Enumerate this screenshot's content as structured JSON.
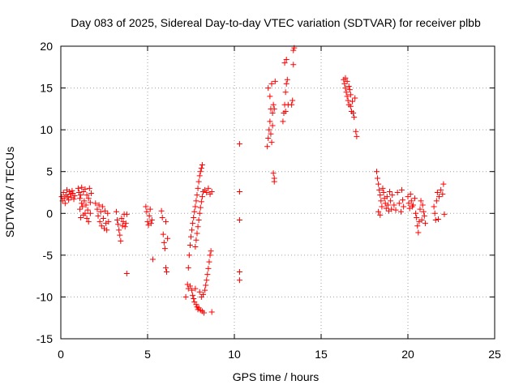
{
  "chart_data": {
    "type": "scatter",
    "title": "Day 083 of 2025, Sidereal Day-to-day VTEC variation (SDTVAR) for receiver plbb",
    "xlabel": "GPS time / hours",
    "ylabel": "SDTVAR / TECUs",
    "xlim": [
      0,
      25
    ],
    "ylim": [
      -15,
      20
    ],
    "xticks": [
      0,
      5,
      10,
      15,
      20,
      25
    ],
    "yticks": [
      -15,
      -10,
      -5,
      0,
      5,
      10,
      15,
      20
    ],
    "xtick_labels": [
      "0",
      "5",
      "10",
      "15",
      "20",
      "25"
    ],
    "ytick_labels": [
      "-15",
      "-10",
      "-5",
      "0",
      "5",
      "10",
      "15",
      "20"
    ],
    "grid": true,
    "marker": "+",
    "color": "#ff0000",
    "series": [
      {
        "name": "SDTVAR",
        "points": [
          [
            0.05,
            2.0
          ],
          [
            0.1,
            1.5
          ],
          [
            0.15,
            2.5
          ],
          [
            0.2,
            1.8
          ],
          [
            0.25,
            1.2
          ],
          [
            0.3,
            2.2
          ],
          [
            0.35,
            2.8
          ],
          [
            0.4,
            2.0
          ],
          [
            0.45,
            1.6
          ],
          [
            0.5,
            2.6
          ],
          [
            0.55,
            2.3
          ],
          [
            0.6,
            1.9
          ],
          [
            0.65,
            2.7
          ],
          [
            0.7,
            2.4
          ],
          [
            0.75,
            1.7
          ],
          [
            0.8,
            2.1
          ],
          [
            1.0,
            3.0
          ],
          [
            1.05,
            2.5
          ],
          [
            1.1,
            1.8
          ],
          [
            1.1,
            0.5
          ],
          [
            1.15,
            2.2
          ],
          [
            1.15,
            -0.5
          ],
          [
            1.2,
            1.2
          ],
          [
            1.2,
            3.1
          ],
          [
            1.25,
            0.8
          ],
          [
            1.3,
            2.6
          ],
          [
            1.3,
            -0.2
          ],
          [
            1.35,
            1.5
          ],
          [
            1.4,
            0.0
          ],
          [
            1.4,
            2.9
          ],
          [
            1.45,
            1.0
          ],
          [
            1.5,
            -0.6
          ],
          [
            1.5,
            2.2
          ],
          [
            1.55,
            0.4
          ],
          [
            1.6,
            1.8
          ],
          [
            1.6,
            -1.0
          ],
          [
            1.65,
            3.0
          ],
          [
            1.7,
            1.3
          ],
          [
            1.7,
            0.0
          ],
          [
            1.75,
            2.4
          ],
          [
            2.0,
            1.2
          ],
          [
            2.1,
            0.5
          ],
          [
            2.15,
            -0.3
          ],
          [
            2.2,
            1.0
          ],
          [
            2.25,
            -1.0
          ],
          [
            2.3,
            0.2
          ],
          [
            2.35,
            -1.5
          ],
          [
            2.4,
            0.8
          ],
          [
            2.45,
            -0.6
          ],
          [
            2.5,
            -1.8
          ],
          [
            2.55,
            0.3
          ],
          [
            2.6,
            -1.2
          ],
          [
            2.65,
            -2.0
          ],
          [
            2.7,
            0.0
          ],
          [
            2.75,
            -1.0
          ],
          [
            3.2,
            0.2
          ],
          [
            3.25,
            -0.8
          ],
          [
            3.3,
            -1.3
          ],
          [
            3.35,
            -2.0
          ],
          [
            3.4,
            -2.6
          ],
          [
            3.45,
            -3.3
          ],
          [
            3.5,
            -0.6
          ],
          [
            3.55,
            -1.5
          ],
          [
            3.6,
            -1.0
          ],
          [
            3.65,
            -0.1
          ],
          [
            3.7,
            -1.6
          ],
          [
            3.75,
            -1.2
          ],
          [
            3.8,
            -0.1
          ],
          [
            3.8,
            -7.2
          ],
          [
            4.9,
            0.8
          ],
          [
            4.95,
            0.2
          ],
          [
            5.0,
            -1.0
          ],
          [
            5.05,
            -1.4
          ],
          [
            5.1,
            -0.3
          ],
          [
            5.15,
            0.5
          ],
          [
            5.2,
            -1.2
          ],
          [
            5.25,
            -0.8
          ],
          [
            5.3,
            -5.5
          ],
          [
            5.8,
            0.3
          ],
          [
            5.85,
            -0.5
          ],
          [
            5.9,
            -2.5
          ],
          [
            5.95,
            -3.5
          ],
          [
            6.0,
            -4.2
          ],
          [
            6.05,
            -6.5
          ],
          [
            6.1,
            -7.0
          ],
          [
            6.05,
            -1.0
          ],
          [
            6.15,
            -3.0
          ],
          [
            7.2,
            -10.0
          ],
          [
            7.3,
            -8.5
          ],
          [
            7.35,
            -6.5
          ],
          [
            7.4,
            -5.0
          ],
          [
            7.45,
            -3.8
          ],
          [
            7.5,
            -2.8
          ],
          [
            7.55,
            -2.0
          ],
          [
            7.6,
            -1.2
          ],
          [
            7.65,
            -0.5
          ],
          [
            7.7,
            0.2
          ],
          [
            7.75,
            0.8
          ],
          [
            7.8,
            1.5
          ],
          [
            7.85,
            2.2
          ],
          [
            7.9,
            3.0
          ],
          [
            7.95,
            3.8
          ],
          [
            8.0,
            4.5
          ],
          [
            8.05,
            5.0
          ],
          [
            8.1,
            5.4
          ],
          [
            8.15,
            5.8
          ],
          [
            7.35,
            -9.0
          ],
          [
            7.45,
            -8.7
          ],
          [
            7.55,
            -9.2
          ],
          [
            7.6,
            -9.8
          ],
          [
            7.65,
            -10.2
          ],
          [
            7.7,
            -10.6
          ],
          [
            7.75,
            -9.0
          ],
          [
            7.8,
            -10.9
          ],
          [
            7.85,
            -11.2
          ],
          [
            7.9,
            -11.5
          ],
          [
            7.95,
            -11.3
          ],
          [
            8.0,
            -9.4
          ],
          [
            8.05,
            -11.6
          ],
          [
            8.1,
            -10.0
          ],
          [
            8.15,
            -11.7
          ],
          [
            8.2,
            -9.7
          ],
          [
            8.25,
            -11.9
          ],
          [
            8.3,
            -9.2
          ],
          [
            8.35,
            -8.6
          ],
          [
            8.4,
            -8.0
          ],
          [
            8.45,
            -7.3
          ],
          [
            8.5,
            -6.6
          ],
          [
            8.55,
            -5.8
          ],
          [
            8.6,
            -5.0
          ],
          [
            8.65,
            -4.5
          ],
          [
            8.7,
            -11.8
          ],
          [
            7.75,
            -4.0
          ],
          [
            7.8,
            -3.2
          ],
          [
            7.85,
            -2.4
          ],
          [
            7.9,
            -1.6
          ],
          [
            7.95,
            -0.8
          ],
          [
            8.0,
            0.0
          ],
          [
            8.05,
            0.7
          ],
          [
            8.1,
            1.4
          ],
          [
            8.15,
            2.0
          ],
          [
            8.2,
            2.6
          ],
          [
            8.3,
            2.8
          ],
          [
            8.4,
            2.5
          ],
          [
            8.5,
            3.0
          ],
          [
            8.6,
            2.3
          ],
          [
            8.7,
            2.6
          ],
          [
            10.3,
            8.3
          ],
          [
            10.3,
            2.6
          ],
          [
            10.3,
            -0.8
          ],
          [
            10.3,
            -7.0
          ],
          [
            10.3,
            -8.0
          ],
          [
            11.9,
            8.0
          ],
          [
            11.95,
            9.0
          ],
          [
            12.0,
            10.0
          ],
          [
            12.05,
            11.0
          ],
          [
            12.1,
            9.5
          ],
          [
            12.15,
            8.5
          ],
          [
            12.2,
            10.5
          ],
          [
            12.25,
            4.8
          ],
          [
            12.3,
            4.2
          ],
          [
            12.3,
            3.8
          ],
          [
            11.95,
            15.0
          ],
          [
            12.05,
            14.0
          ],
          [
            12.1,
            12.5
          ],
          [
            12.15,
            15.5
          ],
          [
            12.2,
            12.0
          ],
          [
            12.25,
            13.0
          ],
          [
            12.3,
            12.5
          ],
          [
            12.35,
            15.8
          ],
          [
            12.8,
            11.0
          ],
          [
            12.85,
            12.0
          ],
          [
            12.9,
            13.0
          ],
          [
            12.95,
            14.5
          ],
          [
            13.0,
            15.5
          ],
          [
            13.05,
            16.0
          ],
          [
            13.1,
            13.0
          ],
          [
            12.95,
            12.2
          ],
          [
            12.9,
            18.0
          ],
          [
            13.0,
            18.4
          ],
          [
            13.3,
            13.0
          ],
          [
            13.35,
            13.5
          ],
          [
            13.4,
            17.8
          ],
          [
            13.4,
            19.5
          ],
          [
            13.45,
            19.8
          ],
          [
            16.3,
            16.0
          ],
          [
            16.35,
            15.5
          ],
          [
            16.4,
            15.0
          ],
          [
            16.45,
            14.5
          ],
          [
            16.5,
            14.0
          ],
          [
            16.55,
            13.5
          ],
          [
            16.6,
            13.0
          ],
          [
            16.65,
            14.8
          ],
          [
            16.7,
            12.8
          ],
          [
            16.75,
            12.2
          ],
          [
            16.4,
            16.2
          ],
          [
            16.5,
            15.8
          ],
          [
            16.6,
            15.2
          ],
          [
            16.7,
            14.2
          ],
          [
            16.8,
            13.4
          ],
          [
            16.85,
            12.0
          ],
          [
            16.9,
            11.5
          ],
          [
            16.95,
            13.8
          ],
          [
            17.0,
            9.8
          ],
          [
            17.05,
            9.2
          ],
          [
            18.2,
            5.0
          ],
          [
            18.25,
            4.2
          ],
          [
            18.3,
            3.5
          ],
          [
            18.35,
            2.8
          ],
          [
            18.4,
            2.2
          ],
          [
            18.45,
            1.5
          ],
          [
            18.5,
            0.8
          ],
          [
            18.3,
            0.2
          ],
          [
            18.4,
            -0.2
          ],
          [
            18.55,
            3.0
          ],
          [
            18.6,
            2.5
          ],
          [
            18.65,
            1.8
          ],
          [
            18.7,
            1.2
          ],
          [
            18.75,
            0.6
          ],
          [
            18.8,
            2.0
          ],
          [
            18.85,
            1.0
          ],
          [
            18.9,
            0.3
          ],
          [
            18.95,
            2.6
          ],
          [
            19.0,
            1.5
          ],
          [
            19.05,
            0.5
          ],
          [
            19.1,
            2.2
          ],
          [
            19.2,
            1.0
          ],
          [
            19.3,
            0.4
          ],
          [
            19.4,
            2.5
          ],
          [
            19.5,
            1.2
          ],
          [
            19.6,
            0.2
          ],
          [
            19.65,
            2.8
          ],
          [
            19.7,
            1.6
          ],
          [
            19.75,
            0.8
          ],
          [
            20.0,
            2.0
          ],
          [
            20.05,
            1.2
          ],
          [
            20.1,
            0.6
          ],
          [
            20.15,
            2.3
          ],
          [
            20.2,
            1.5
          ],
          [
            20.25,
            0.8
          ],
          [
            20.3,
            1.0
          ],
          [
            20.4,
            1.8
          ],
          [
            20.45,
            0.0
          ],
          [
            20.5,
            -0.5
          ],
          [
            20.55,
            -1.5
          ],
          [
            20.6,
            -2.3
          ],
          [
            20.65,
            -1.0
          ],
          [
            20.7,
            0.5
          ],
          [
            20.75,
            1.5
          ],
          [
            20.8,
            -0.8
          ],
          [
            20.85,
            1.0
          ],
          [
            20.9,
            0.2
          ],
          [
            20.95,
            -0.3
          ],
          [
            21.0,
            -1.2
          ],
          [
            21.5,
            0.8
          ],
          [
            21.55,
            0.0
          ],
          [
            21.6,
            -0.8
          ],
          [
            21.65,
            1.5
          ],
          [
            21.7,
            2.5
          ],
          [
            21.75,
            -0.7
          ],
          [
            21.8,
            2.0
          ],
          [
            21.9,
            2.8
          ],
          [
            22.0,
            2.3
          ],
          [
            22.05,
            3.5
          ],
          [
            22.1,
            -0.1
          ]
        ]
      }
    ]
  }
}
